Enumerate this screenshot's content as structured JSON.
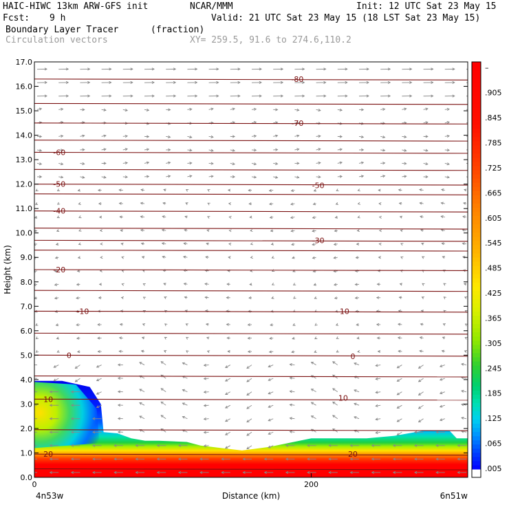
{
  "header": {
    "model": "HAIC-HIWC 13km ARW-GFS init",
    "org": "NCAR/MMM",
    "init": "Init: 12 UTC Sat 23 May 15",
    "fcst_label": "Fcst:",
    "fcst_value": "9 h",
    "valid": "Valid: 21 UTC Sat 23 May 15 (18 LST Sat 23 May 15)",
    "field": "Boundary Layer Tracer",
    "field_units": "(fraction)",
    "vectors": "Circulation vectors",
    "xy": "XY= 259.5, 91.6 to 274.6,110.2"
  },
  "colors": {
    "contour": "#7a1010",
    "vector": "#888888",
    "scale": [
      "#ffffff",
      "#0000ff",
      "#0055ff",
      "#00aaff",
      "#00d8e8",
      "#00e0a0",
      "#10d040",
      "#60e000",
      "#b0f000",
      "#e8f000",
      "#ffe000",
      "#ffb000",
      "#ff8000",
      "#ff4000",
      "#ff0000"
    ]
  },
  "chart_data": {
    "type": "heatmap",
    "xlabel": "Distance (km)",
    "ylabel": "Height (km)",
    "xlim": [
      0,
      313
    ],
    "ylim": [
      0.0,
      17.0
    ],
    "x_ticks": [
      {
        "value": 0,
        "label": "0"
      },
      {
        "value": 200,
        "label": "200"
      }
    ],
    "x_endpoints": {
      "left": "4n53w",
      "right": "6n51w"
    },
    "y_ticks": [
      "0.0",
      "1.0",
      "2.0",
      "3.0",
      "4.0",
      "5.0",
      "6.0",
      "7.0",
      "8.0",
      "9.0",
      "10.0",
      "11.0",
      "12.0",
      "13.0",
      "14.0",
      "15.0",
      "16.0",
      "17.0"
    ],
    "colorbar_labels": [
      ".005",
      ".065",
      ".125",
      ".185",
      ".245",
      ".305",
      ".365",
      ".425",
      ".485",
      ".545",
      ".605",
      ".665",
      ".725",
      ".785",
      ".845",
      ".905",
      "–"
    ],
    "tracer_top_km": [
      [
        0,
        3.95
      ],
      [
        20,
        3.95
      ],
      [
        40,
        3.7
      ],
      [
        48,
        3.0
      ],
      [
        50,
        1.85
      ],
      [
        60,
        1.8
      ],
      [
        65,
        1.7
      ],
      [
        70,
        1.6
      ],
      [
        80,
        1.5
      ],
      [
        90,
        1.5
      ],
      [
        110,
        1.45
      ],
      [
        120,
        1.3
      ],
      [
        135,
        1.2
      ],
      [
        150,
        1.1
      ],
      [
        170,
        1.25
      ],
      [
        200,
        1.6
      ],
      [
        215,
        1.6
      ],
      [
        240,
        1.6
      ],
      [
        260,
        1.7
      ],
      [
        280,
        1.9
      ],
      [
        300,
        1.9
      ],
      [
        305,
        1.6
      ],
      [
        313,
        1.6
      ]
    ],
    "temperature_contours": [
      {
        "label": "-80",
        "labels_at": [
          [
            190,
            16.3
          ]
        ]
      },
      {
        "label": "-70",
        "labels_at": [
          [
            190,
            14.5
          ]
        ]
      },
      {
        "label": "-60",
        "labels_at": [
          [
            18,
            13.3
          ]
        ]
      },
      {
        "label": "-50",
        "labels_at": [
          [
            18,
            12.0
          ],
          [
            205,
            11.95
          ]
        ]
      },
      {
        "label": "-40",
        "labels_at": [
          [
            18,
            10.9
          ]
        ]
      },
      {
        "label": "-30",
        "labels_at": [
          [
            205,
            9.7
          ]
        ]
      },
      {
        "label": "-20",
        "labels_at": [
          [
            18,
            8.5
          ]
        ]
      },
      {
        "label": "-10",
        "labels_at": [
          [
            35,
            6.8
          ],
          [
            223,
            6.8
          ]
        ]
      },
      {
        "label": "0",
        "labels_at": [
          [
            25,
            5.0
          ],
          [
            230,
            4.95
          ]
        ]
      },
      {
        "label": "10",
        "labels_at": [
          [
            10,
            3.2
          ],
          [
            223,
            3.25
          ]
        ]
      },
      {
        "label": "20",
        "labels_at": [
          [
            10,
            0.95
          ],
          [
            230,
            0.95
          ]
        ]
      }
    ]
  }
}
